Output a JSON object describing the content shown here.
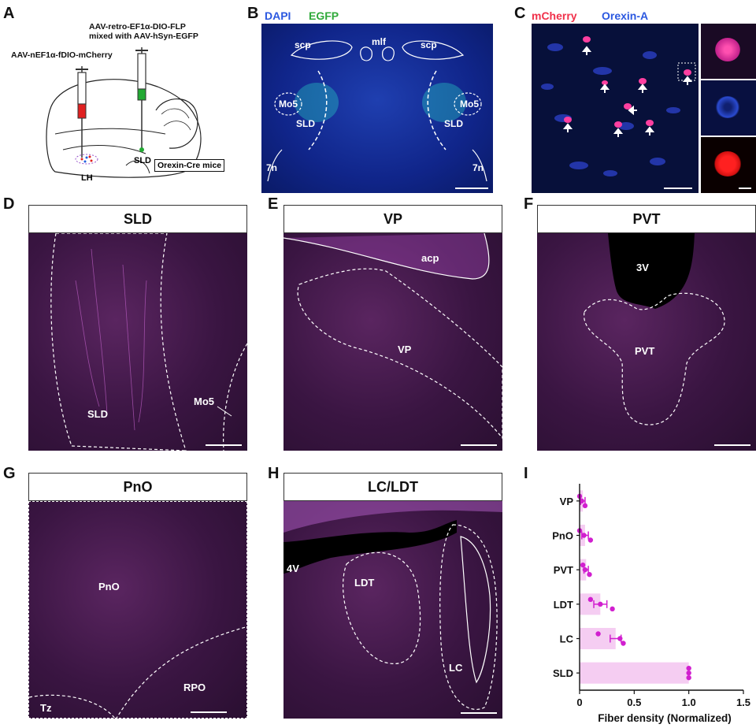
{
  "panel_labels": {
    "A": "A",
    "B": "B",
    "C": "C",
    "D": "D",
    "E": "E",
    "F": "F",
    "G": "G",
    "H": "H",
    "I": "I"
  },
  "panelA": {
    "virus1": "AAV-retro-EF1α-DIO-FLP",
    "virus2": "mixed with AAV-hSyn-EGFP",
    "virus3": "AAV-nEF1α-fDIO-mCherry",
    "sld": "SLD",
    "lh": "LH",
    "mice": "Orexin-Cre mice"
  },
  "panelB": {
    "dapi": "DAPI",
    "egfp": "EGFP",
    "scp_l": "scp",
    "scp_r": "scp",
    "mlf": "mlf",
    "mo5_l": "Mo5",
    "mo5_r": "Mo5",
    "sld_l": "SLD",
    "sld_r": "SLD",
    "n7_l": "7n",
    "n7_r": "7n"
  },
  "panelC": {
    "mcherry": "mCherry",
    "orexin": "Orexin-A"
  },
  "panelD": {
    "title": "SLD",
    "sld": "SLD",
    "mo5": "Mo5"
  },
  "panelE": {
    "title": "VP",
    "acp": "acp",
    "vp": "VP"
  },
  "panelF": {
    "title": "PVT",
    "v3": "3V",
    "pvt": "PVT"
  },
  "panelG": {
    "title": "PnO",
    "pno": "PnO",
    "rpo": "RPO",
    "tz": "Tz"
  },
  "panelH": {
    "title": "LC/LDT",
    "v4": "4V",
    "ldt": "LDT",
    "lc": "LC"
  },
  "chart_data": {
    "type": "bar",
    "orientation": "horizontal",
    "categories": [
      "VP",
      "PnO",
      "PVT",
      "LDT",
      "LC",
      "SLD"
    ],
    "values": [
      0.03,
      0.05,
      0.06,
      0.19,
      0.33,
      1.0
    ],
    "errors": [
      0.02,
      0.03,
      0.02,
      0.06,
      0.05,
      0.0
    ],
    "points": [
      [
        0.0,
        0.02,
        0.05
      ],
      [
        0.0,
        0.04,
        0.1
      ],
      [
        0.03,
        0.05,
        0.09
      ],
      [
        0.1,
        0.19,
        0.3
      ],
      [
        0.17,
        0.37,
        0.4
      ],
      [
        1.0,
        1.0,
        1.0
      ]
    ],
    "xlabel": "Fiber density (Normalized)",
    "xlim": [
      0,
      1.5
    ],
    "xticks": [
      "0",
      "0.5",
      "1.0",
      "1.5"
    ],
    "bar_color": "#f5cdf2",
    "point_color": "#d11fcf"
  }
}
